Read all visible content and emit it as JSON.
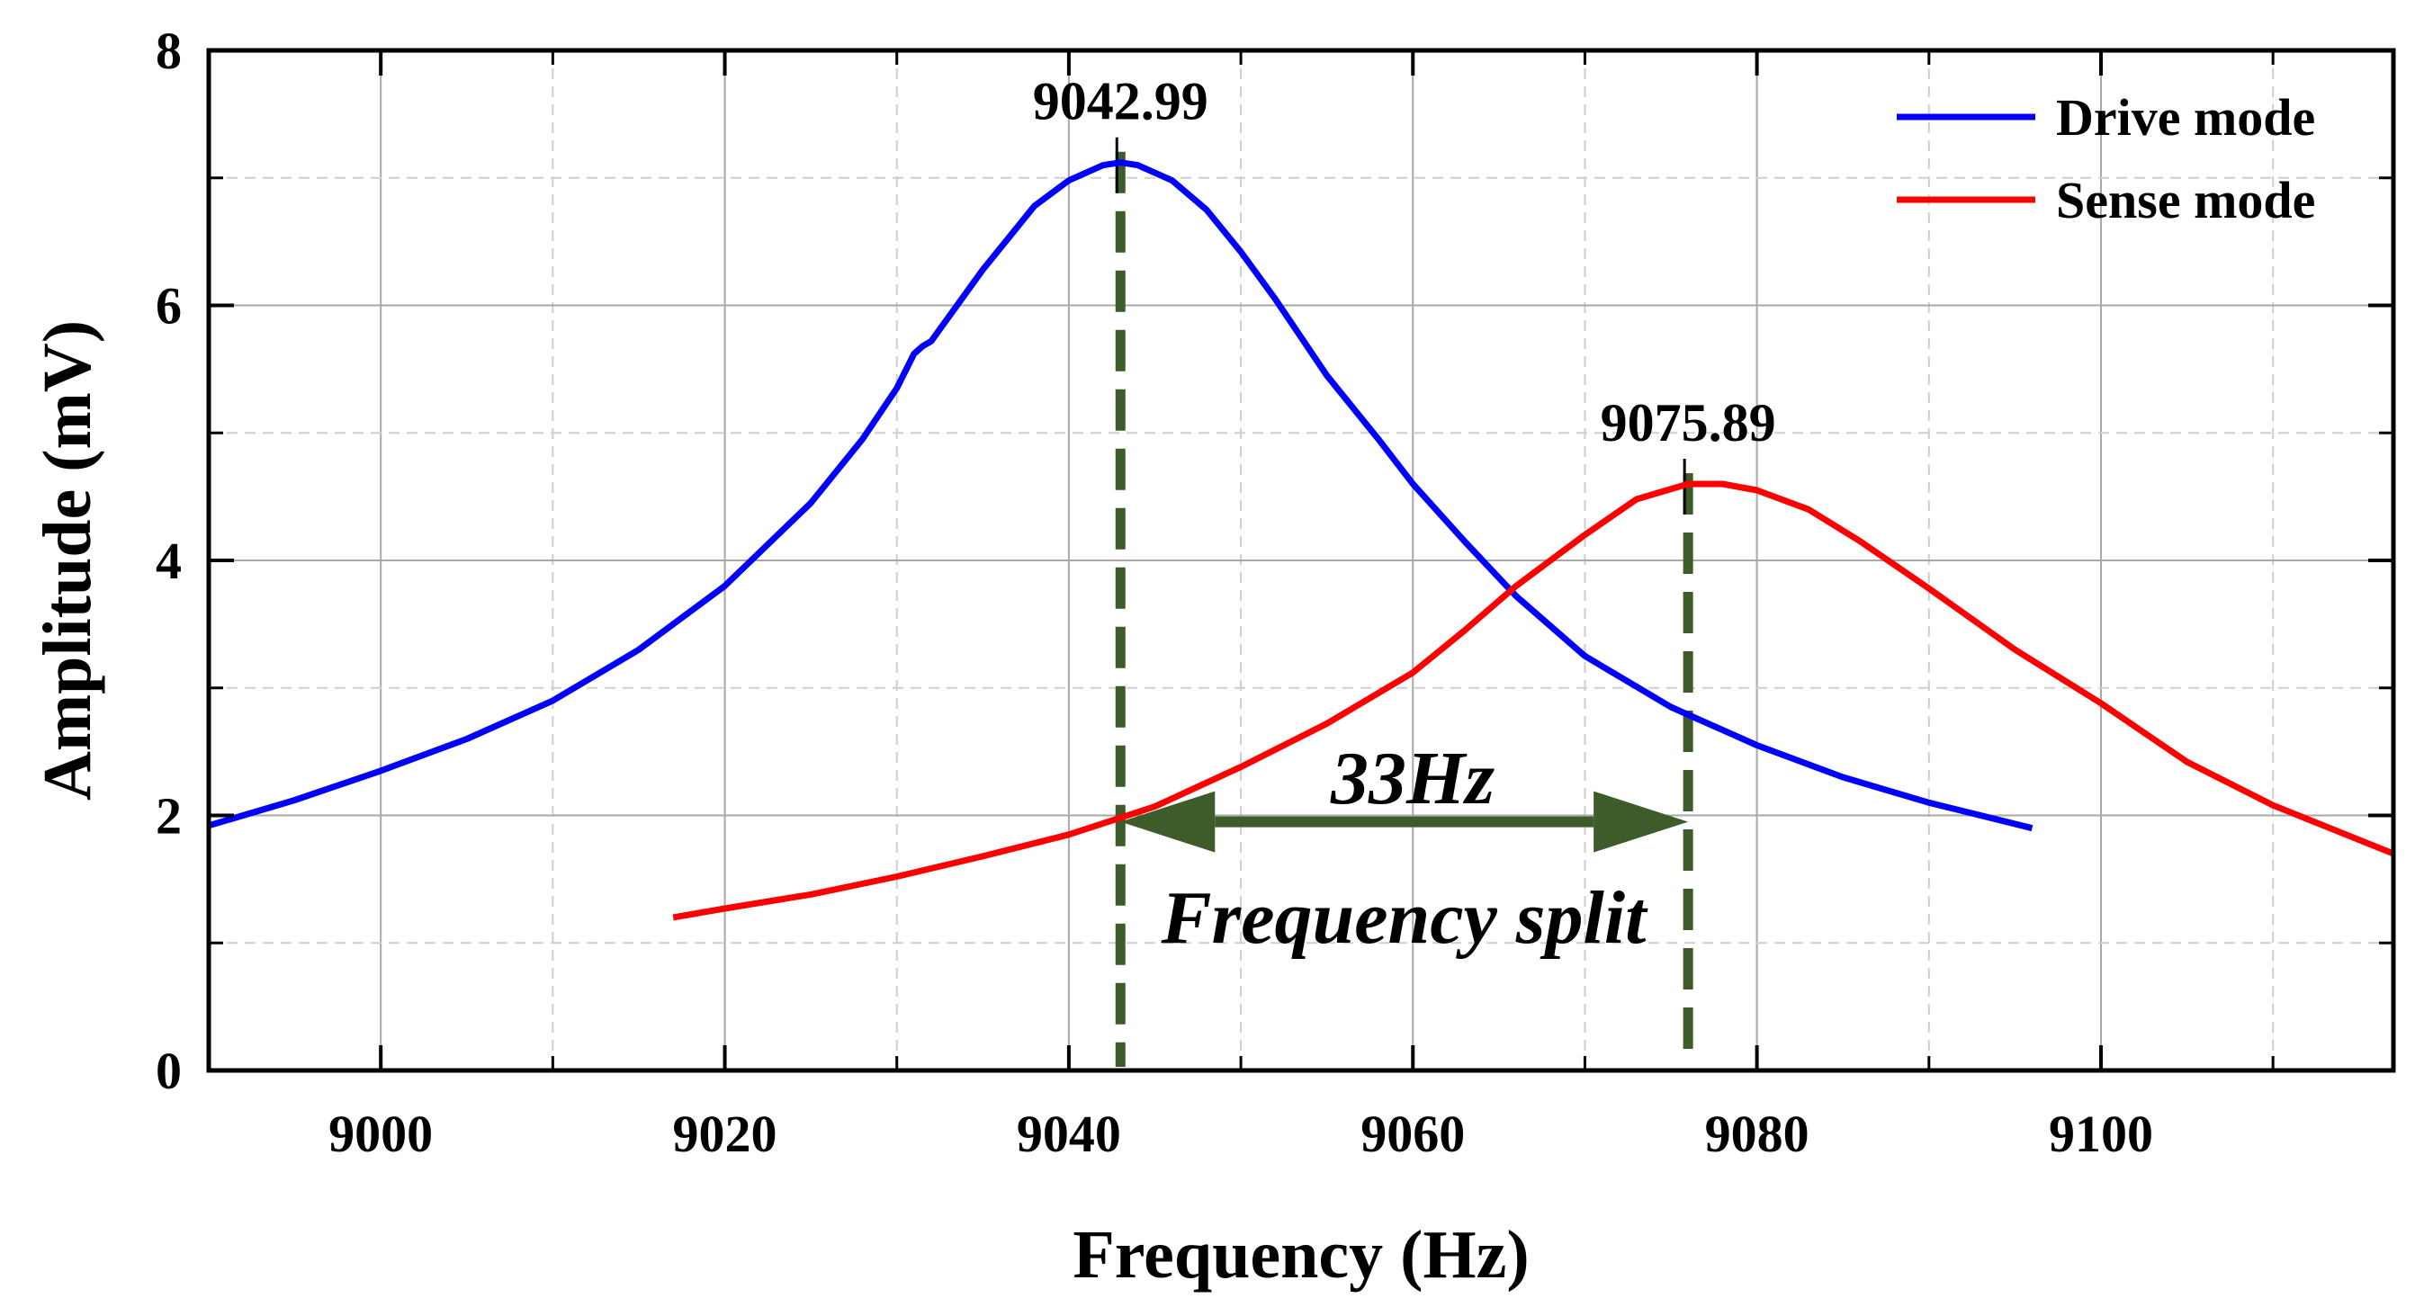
{
  "chart_data": {
    "type": "line",
    "title": "",
    "xlabel": "Frequency (Hz)",
    "ylabel": "Amplitude (mV)",
    "xlim": [
      8990,
      9117
    ],
    "ylim": [
      0,
      8
    ],
    "xticks": [
      9000,
      9020,
      9040,
      9060,
      9080,
      9100
    ],
    "yticks": [
      0,
      2,
      4,
      6,
      8
    ],
    "x_tick_labels": [
      "9000",
      "9020",
      "9040",
      "9060",
      "9080",
      "9100"
    ],
    "y_tick_labels": [
      "0",
      "2",
      "4",
      "6",
      "8"
    ],
    "grid": true,
    "legend_position": "top-right",
    "series": [
      {
        "name": "Drive mode",
        "color": "#0000ff",
        "x": [
          8990,
          8995,
          9000,
          9005,
          9010,
          9015,
          9020,
          9025,
          9028,
          9030,
          9031,
          9031.5,
          9032,
          9035,
          9038,
          9040,
          9042,
          9043,
          9044,
          9046,
          9048,
          9050,
          9052,
          9055,
          9058,
          9060,
          9063,
          9066,
          9070,
          9075,
          9080,
          9085,
          9090,
          9096
        ],
        "y": [
          1.92,
          2.12,
          2.35,
          2.6,
          2.9,
          3.3,
          3.8,
          4.45,
          4.95,
          5.35,
          5.62,
          5.68,
          5.72,
          6.28,
          6.78,
          6.98,
          7.1,
          7.12,
          7.1,
          6.98,
          6.75,
          6.42,
          6.05,
          5.45,
          4.95,
          4.6,
          4.15,
          3.72,
          3.25,
          2.85,
          2.55,
          2.3,
          2.1,
          1.9
        ]
      },
      {
        "name": "Sense mode",
        "color": "#ff0000",
        "x": [
          9017,
          9020,
          9025,
          9030,
          9035,
          9040,
          9045,
          9050,
          9055,
          9060,
          9063,
          9066,
          9070,
          9073,
          9076,
          9078,
          9080,
          9083,
          9086,
          9090,
          9095,
          9100,
          9105,
          9110,
          9117
        ],
        "y": [
          1.2,
          1.27,
          1.38,
          1.52,
          1.68,
          1.85,
          2.07,
          2.38,
          2.72,
          3.12,
          3.45,
          3.8,
          4.2,
          4.48,
          4.6,
          4.6,
          4.55,
          4.4,
          4.15,
          3.78,
          3.3,
          2.88,
          2.42,
          2.08,
          1.7
        ]
      }
    ],
    "peaks": [
      {
        "label": "9042.99",
        "x": 9043,
        "y": 7.12
      },
      {
        "label": "9075.89",
        "x": 9076,
        "y": 4.6
      }
    ],
    "annotations": {
      "split_value": "33Hz",
      "split_label": "Frequency split",
      "arrow_y": 1.95,
      "marker_color": "#3d5c29"
    }
  }
}
